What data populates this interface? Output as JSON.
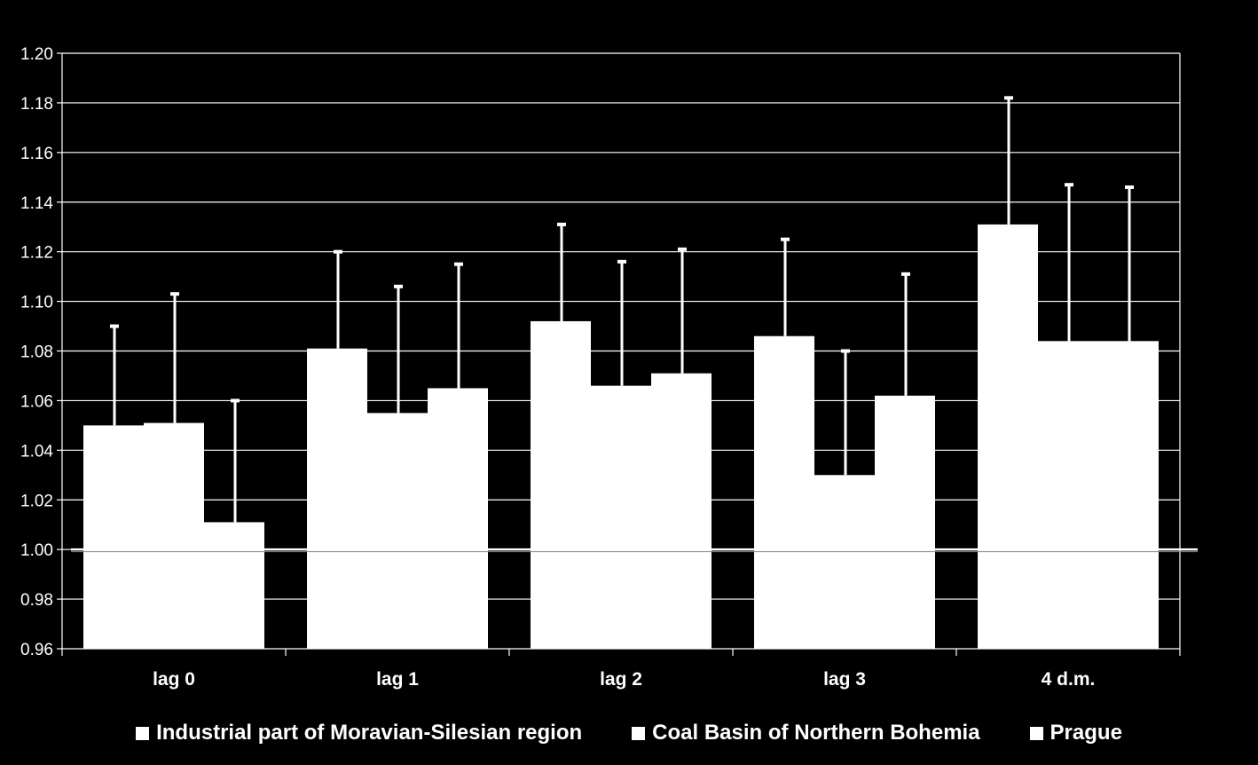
{
  "chart_data": {
    "type": "bar",
    "categories": [
      "lag 0",
      "lag 1",
      "lag 2",
      "lag 3",
      "4 d.m."
    ],
    "series": [
      {
        "name": "Industrial part of Moravian-Silesian region",
        "values": [
          1.05,
          1.081,
          1.092,
          1.086,
          1.131
        ],
        "upper": [
          1.09,
          1.12,
          1.131,
          1.125,
          1.182
        ]
      },
      {
        "name": "Coal Basin of Northern Bohemia",
        "values": [
          1.051,
          1.055,
          1.066,
          1.03,
          1.084
        ],
        "upper": [
          1.103,
          1.106,
          1.116,
          1.08,
          1.147
        ]
      },
      {
        "name": "Prague",
        "values": [
          1.011,
          1.065,
          1.071,
          1.062,
          1.084
        ],
        "upper": [
          1.06,
          1.115,
          1.121,
          1.111,
          1.146
        ]
      }
    ],
    "baseline": 1.0,
    "ylim": [
      0.96,
      1.2
    ],
    "ytick_step": 0.02,
    "yticks": [
      "0.96",
      "0.98",
      "1.00",
      "1.02",
      "1.04",
      "1.06",
      "1.08",
      "1.10",
      "1.12",
      "1.14",
      "1.16",
      "1.18",
      "1.20"
    ],
    "grid": true,
    "legend_position": "bottom",
    "colors": {
      "background": "#000000",
      "bars": "#ffffff",
      "grid": "#ffffff",
      "text": "#ffffff"
    }
  }
}
